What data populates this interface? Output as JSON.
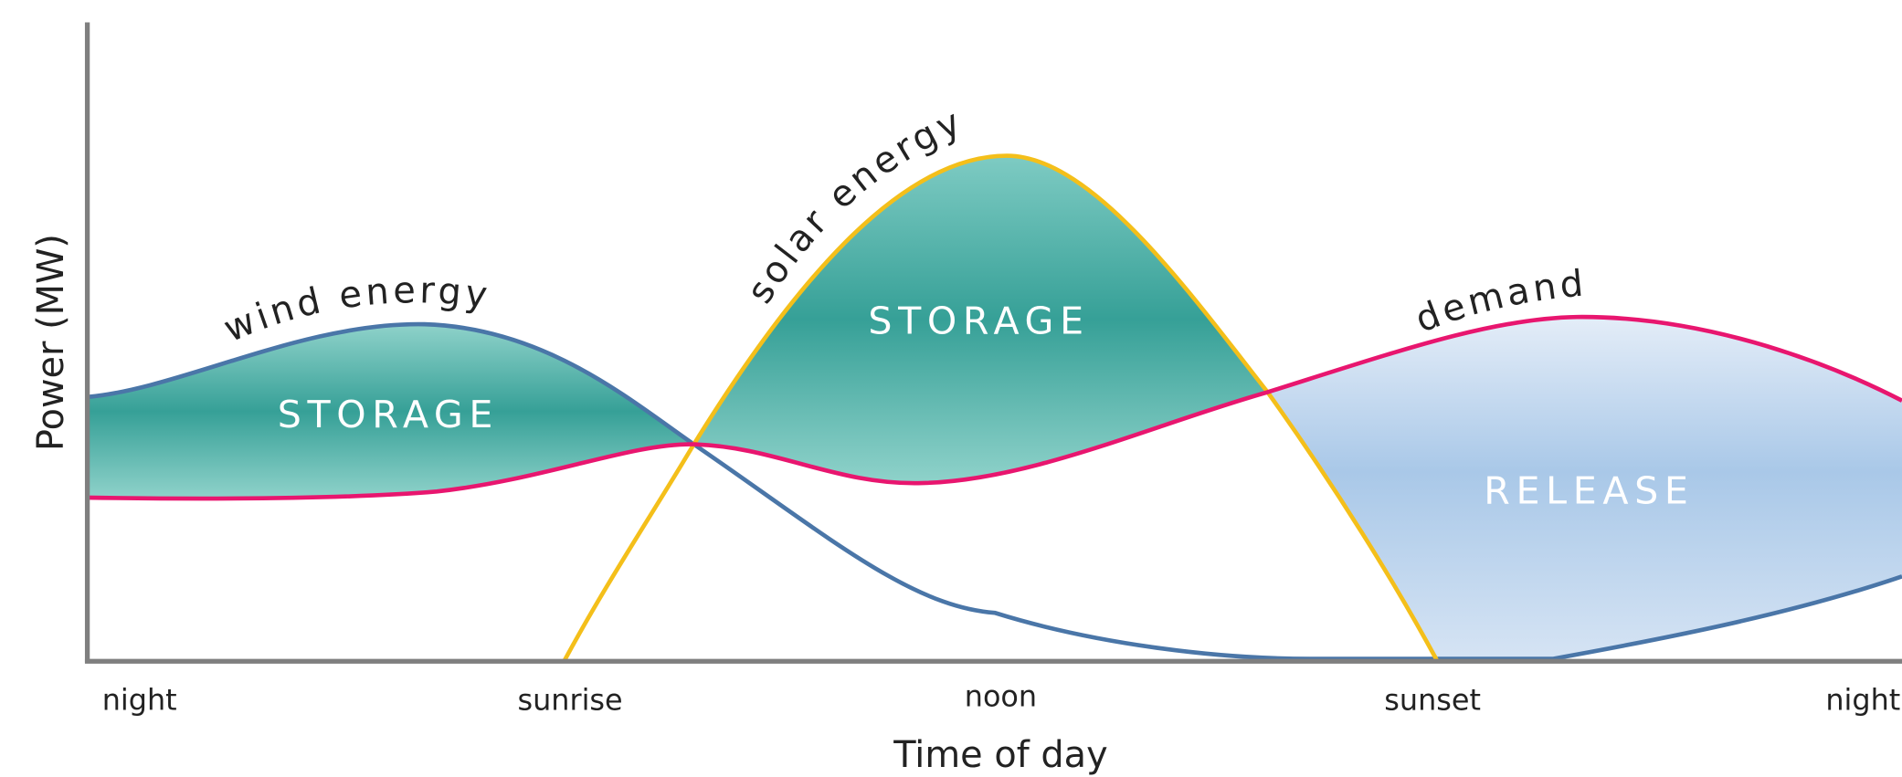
{
  "axes": {
    "y_label": "Power (MW)",
    "x_label": "Time of day",
    "x_ticks": [
      "night",
      "sunrise",
      "noon",
      "sunset",
      "night"
    ]
  },
  "curve_labels": [
    "wind energy",
    "solar energy",
    "demand"
  ],
  "region_labels": [
    "STORAGE",
    "STORAGE",
    "RELEASE"
  ]
}
